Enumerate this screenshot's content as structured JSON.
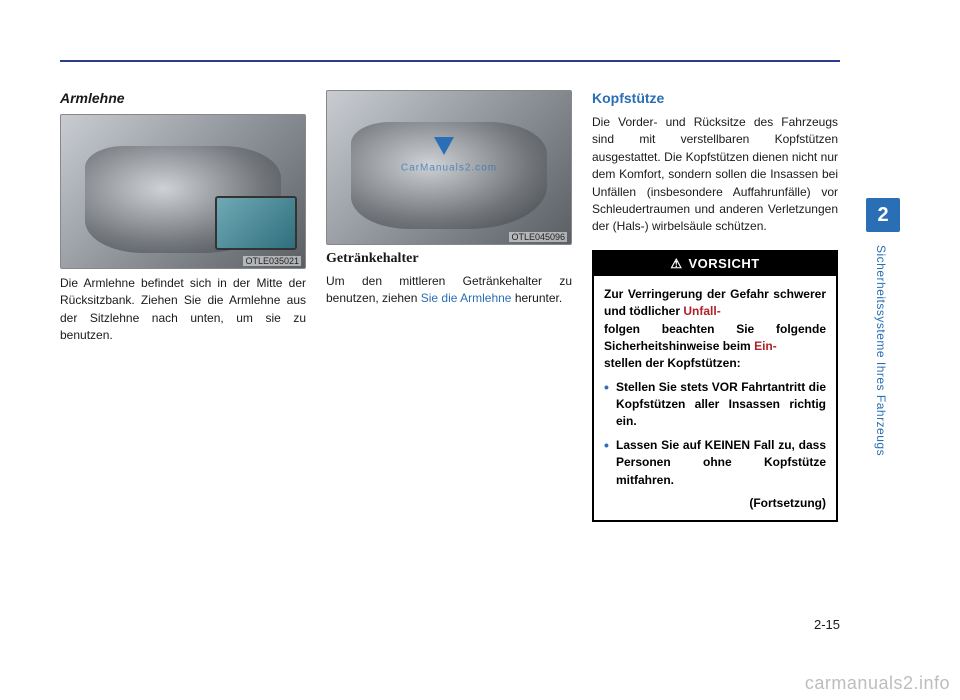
{
  "colors": {
    "rule": "#2a3d8f",
    "accent": "#2a6fb5",
    "warn_red": "#b0202a",
    "text": "#1a1a1a",
    "watermark": "#bdbdbd"
  },
  "side": {
    "chapter_number": "2",
    "chapter_label": "Sicherheitssysteme Ihres Fahrzeugs"
  },
  "page_number": "2-15",
  "site_watermark": "carmanuals2.info",
  "col1": {
    "title": "Armlehne",
    "figure_code": "OTLE035021",
    "body": "Die Armlehne befindet sich in der Mitte der Rücksitzbank. Ziehen Sie die Armlehne aus der Sitzlehne nach unten, um sie zu benutzen."
  },
  "col2": {
    "figure_code": "OTLE045096",
    "title": "Getränkehalter",
    "body_a": "Um den mittleren Getränkehalter zu benutzen, ziehen ",
    "body_link": "Sie die Armlehne",
    "body_b": " herunter."
  },
  "col3": {
    "title": "Kopfstütze",
    "body": "Die Vorder- und Rücksitze des Fahrzeugs sind mit verstellbaren Kopfstützen ausgestattet. Die Kopfstützen dienen nicht nur dem Komfort, sondern sollen die Insassen bei Unfällen (insbesondere Auffahrunfälle) vor Schleudertraumen und anderen Verletzungen der (Hals-) wirbelsäule schützen.",
    "caution": {
      "head": "VORSICHT",
      "intro_a": "Zur Verringerung der Gefahr schwerer und tödlicher ",
      "intro_red1": "Unfall",
      "intro_b": "folgen beachten Sie folgende Sicherheitshinweise beim ",
      "intro_red2": "Ein",
      "intro_c": "stellen der Kopfstützen:",
      "bullets": [
        "Stellen Sie stets VOR Fahrtantritt die Kopfstützen aller Insassen richtig ein.",
        "Lassen Sie auf KEINEN Fall zu, dass Personen ohne Kopfstütze mitfahren."
      ],
      "continued": "(Fortsetzung)"
    }
  }
}
